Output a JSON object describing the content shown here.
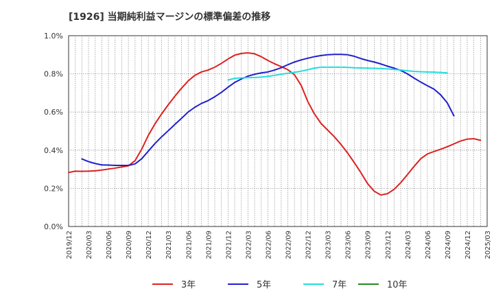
{
  "chart_data": {
    "type": "line",
    "title": "[1926]  当期純利益マージンの標準偏差の推移",
    "xlabel": "",
    "ylabel": "",
    "x_ticks": [
      "2019/12",
      "2020/03",
      "2020/06",
      "2020/09",
      "2020/12",
      "2021/03",
      "2021/06",
      "2021/09",
      "2021/12",
      "2022/03",
      "2022/06",
      "2022/09",
      "2022/12",
      "2023/03",
      "2023/06",
      "2023/09",
      "2023/12",
      "2024/03",
      "2024/06",
      "2024/09",
      "2024/12",
      "2025/03"
    ],
    "y_ticks": [
      "0.0%",
      "0.2%",
      "0.4%",
      "0.6%",
      "0.8%",
      "1.0%"
    ],
    "ylim": [
      0,
      1.0
    ],
    "grid": true,
    "legend_position": "bottom",
    "series": [
      {
        "name": "3年",
        "color": "#dd1f1f",
        "values": [
          [
            0,
            0.283
          ],
          [
            1,
            0.29
          ],
          [
            2,
            0.289
          ],
          [
            3,
            0.29
          ],
          [
            4,
            0.292
          ],
          [
            5,
            0.296
          ],
          [
            6,
            0.301
          ],
          [
            7,
            0.306
          ],
          [
            8,
            0.312
          ],
          [
            9,
            0.318
          ],
          [
            10,
            0.345
          ],
          [
            11,
            0.405
          ],
          [
            12,
            0.478
          ],
          [
            13,
            0.538
          ],
          [
            14,
            0.59
          ],
          [
            15,
            0.638
          ],
          [
            16,
            0.683
          ],
          [
            17,
            0.725
          ],
          [
            18,
            0.763
          ],
          [
            19,
            0.792
          ],
          [
            20,
            0.81
          ],
          [
            21,
            0.82
          ],
          [
            22,
            0.835
          ],
          [
            23,
            0.855
          ],
          [
            24,
            0.878
          ],
          [
            25,
            0.898
          ],
          [
            26,
            0.907
          ],
          [
            27,
            0.91
          ],
          [
            28,
            0.905
          ],
          [
            29,
            0.89
          ],
          [
            30,
            0.87
          ],
          [
            31,
            0.853
          ],
          [
            32,
            0.838
          ],
          [
            33,
            0.822
          ],
          [
            34,
            0.795
          ],
          [
            35,
            0.74
          ],
          [
            36,
            0.655
          ],
          [
            37,
            0.59
          ],
          [
            38,
            0.54
          ],
          [
            39,
            0.505
          ],
          [
            40,
            0.47
          ],
          [
            41,
            0.43
          ],
          [
            42,
            0.385
          ],
          [
            43,
            0.335
          ],
          [
            44,
            0.282
          ],
          [
            45,
            0.225
          ],
          [
            46,
            0.185
          ],
          [
            47,
            0.165
          ],
          [
            48,
            0.172
          ],
          [
            49,
            0.195
          ],
          [
            50,
            0.23
          ],
          [
            51,
            0.272
          ],
          [
            52,
            0.315
          ],
          [
            53,
            0.355
          ],
          [
            54,
            0.38
          ],
          [
            55,
            0.393
          ],
          [
            56,
            0.405
          ],
          [
            57,
            0.418
          ],
          [
            58,
            0.433
          ],
          [
            59,
            0.448
          ],
          [
            60,
            0.458
          ],
          [
            61,
            0.46
          ],
          [
            62,
            0.452
          ]
        ]
      },
      {
        "name": "5年",
        "color": "#1f1fcc",
        "values": [
          [
            2,
            0.354
          ],
          [
            3,
            0.34
          ],
          [
            4,
            0.33
          ],
          [
            5,
            0.323
          ],
          [
            6,
            0.322
          ],
          [
            7,
            0.32
          ],
          [
            8,
            0.32
          ],
          [
            9,
            0.32
          ],
          [
            10,
            0.328
          ],
          [
            11,
            0.355
          ],
          [
            12,
            0.395
          ],
          [
            13,
            0.435
          ],
          [
            14,
            0.47
          ],
          [
            15,
            0.502
          ],
          [
            16,
            0.535
          ],
          [
            17,
            0.567
          ],
          [
            18,
            0.6
          ],
          [
            19,
            0.625
          ],
          [
            20,
            0.645
          ],
          [
            21,
            0.66
          ],
          [
            22,
            0.68
          ],
          [
            23,
            0.703
          ],
          [
            24,
            0.73
          ],
          [
            25,
            0.755
          ],
          [
            26,
            0.773
          ],
          [
            27,
            0.788
          ],
          [
            28,
            0.798
          ],
          [
            29,
            0.805
          ],
          [
            30,
            0.81
          ],
          [
            31,
            0.82
          ],
          [
            32,
            0.832
          ],
          [
            33,
            0.848
          ],
          [
            34,
            0.862
          ],
          [
            35,
            0.873
          ],
          [
            36,
            0.882
          ],
          [
            37,
            0.89
          ],
          [
            38,
            0.896
          ],
          [
            39,
            0.9
          ],
          [
            40,
            0.902
          ],
          [
            41,
            0.902
          ],
          [
            42,
            0.9
          ],
          [
            43,
            0.892
          ],
          [
            44,
            0.88
          ],
          [
            45,
            0.87
          ],
          [
            46,
            0.862
          ],
          [
            47,
            0.852
          ],
          [
            48,
            0.84
          ],
          [
            49,
            0.83
          ],
          [
            50,
            0.818
          ],
          [
            51,
            0.8
          ],
          [
            52,
            0.778
          ],
          [
            53,
            0.757
          ],
          [
            54,
            0.738
          ],
          [
            55,
            0.72
          ],
          [
            56,
            0.69
          ],
          [
            57,
            0.648
          ],
          [
            58,
            0.58
          ]
        ]
      },
      {
        "name": "7年",
        "color": "#22dddd",
        "values": [
          [
            24,
            0.768
          ],
          [
            25,
            0.776
          ],
          [
            26,
            0.779
          ],
          [
            27,
            0.78
          ],
          [
            28,
            0.781
          ],
          [
            29,
            0.783
          ],
          [
            30,
            0.787
          ],
          [
            31,
            0.792
          ],
          [
            32,
            0.798
          ],
          [
            33,
            0.803
          ],
          [
            34,
            0.808
          ],
          [
            35,
            0.814
          ],
          [
            36,
            0.822
          ],
          [
            37,
            0.83
          ],
          [
            38,
            0.835
          ],
          [
            39,
            0.835
          ],
          [
            40,
            0.835
          ],
          [
            41,
            0.835
          ],
          [
            42,
            0.834
          ],
          [
            43,
            0.832
          ],
          [
            44,
            0.831
          ],
          [
            45,
            0.83
          ],
          [
            46,
            0.829
          ],
          [
            47,
            0.828
          ],
          [
            48,
            0.826
          ],
          [
            49,
            0.823
          ],
          [
            50,
            0.82
          ],
          [
            51,
            0.816
          ],
          [
            52,
            0.813
          ],
          [
            53,
            0.811
          ],
          [
            54,
            0.81
          ],
          [
            55,
            0.809
          ],
          [
            56,
            0.807
          ],
          [
            57,
            0.805
          ]
        ]
      },
      {
        "name": "10年",
        "color": "#228822",
        "values": []
      }
    ]
  }
}
